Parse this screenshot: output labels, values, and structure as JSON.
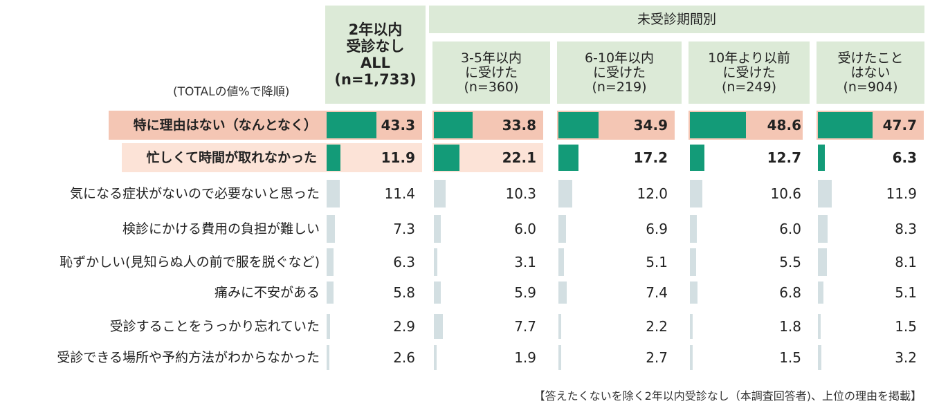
{
  "chart_data": {
    "type": "bar",
    "sort_note": "(TOTALの値%で降順)",
    "group_header": "未受診期間別",
    "columns": [
      {
        "label": "2年以内\n受診なし\nALL\n(n=1,733)"
      },
      {
        "label": "3-5年以内\nに受けた\n(n=360)"
      },
      {
        "label": "6-10年以内\nに受けた\n(n=219)"
      },
      {
        "label": "10年より以前\nに受けた\n(n=249)"
      },
      {
        "label": "受けたこと\nはない\n(n=904)"
      }
    ],
    "categories": [
      "特に理由はない（なんとなく）",
      "忙しくて時間が取れなかった",
      "気になる症状がないので必要ないと思った",
      "検診にかける費用の負担が難しい",
      "恥ずかしい(見知らぬ人の前で服を脱ぐなど)",
      "痛みに不安がある",
      "受診することをうっかり忘れていた",
      "受診できる場所や予約方法がわからなかった"
    ],
    "series": [
      {
        "values": [
          43.3,
          11.9,
          11.4,
          7.3,
          6.3,
          5.8,
          2.9,
          2.6
        ]
      },
      {
        "values": [
          33.8,
          22.1,
          10.3,
          6.0,
          3.1,
          5.9,
          7.7,
          1.9
        ]
      },
      {
        "values": [
          34.9,
          17.2,
          12.0,
          6.9,
          5.1,
          7.4,
          2.2,
          2.7
        ]
      },
      {
        "values": [
          48.6,
          12.7,
          10.6,
          6.0,
          5.5,
          6.8,
          1.8,
          1.5
        ]
      },
      {
        "values": [
          47.7,
          6.3,
          11.9,
          8.3,
          8.1,
          5.1,
          1.5,
          3.2
        ]
      }
    ],
    "value_labels": [
      [
        "43.3",
        "11.9",
        "11.4",
        "7.3",
        "6.3",
        "5.8",
        "2.9",
        "2.6"
      ],
      [
        "33.8",
        "22.1",
        "10.3",
        "6.0",
        "3.1",
        "5.9",
        "7.7",
        "1.9"
      ],
      [
        "34.9",
        "17.2",
        "12.0",
        "6.9",
        "5.1",
        "7.4",
        "2.2",
        "2.7"
      ],
      [
        "48.6",
        "12.7",
        "10.6",
        "6.0",
        "5.5",
        "6.8",
        "1.8",
        "1.5"
      ],
      [
        "47.7",
        "6.3",
        "11.9",
        "8.3",
        "8.1",
        "5.1",
        "1.5",
        "3.2"
      ]
    ],
    "footnote": "【答えたくないを除く2年以内受診なし（本調査回答者)、上位の理由を掲載】",
    "colors": {
      "highlight_bar": "#139b78",
      "normal_bar": "#d3dfe2",
      "header_bg": "#dcead7",
      "row1_bg": "#f4c6b4",
      "row2_bg": "#fce3d7"
    }
  }
}
